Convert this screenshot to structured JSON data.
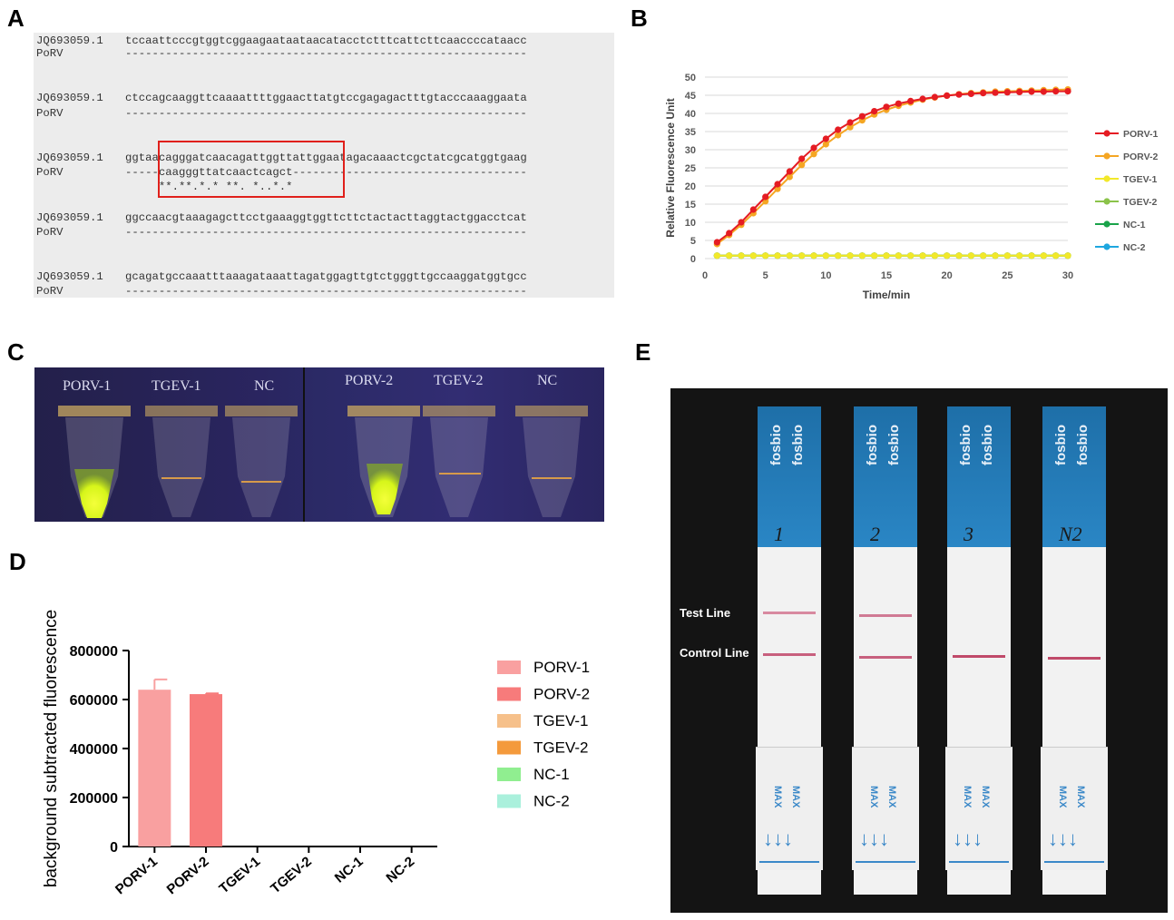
{
  "panels": {
    "a": "A",
    "b": "B",
    "c": "C",
    "d": "D",
    "e": "E"
  },
  "alignment": {
    "rows": [
      {
        "label": "JQ693059.1",
        "seq": "tccaattcccgtggtcggaagaataataacatacctctttcattcttcaaccccataacc"
      },
      {
        "label": "PoRV",
        "seq": "------------------------------------------------------------"
      },
      {
        "label": "JQ693059.1",
        "seq": "ctccagcaaggttcaaaattttggaacttatgtccgagagactttgtacccaaaggaata"
      },
      {
        "label": "PoRV",
        "seq": "------------------------------------------------------------"
      },
      {
        "label": "JQ693059.1",
        "seq": "ggtaacagggatcaacagattggttattggaatagacaaactcgctatcgcatggtgaag"
      },
      {
        "label": "PoRV",
        "seq": "-----caagggttatcaactcagct-----------------------------------"
      },
      {
        "label": "",
        "seq": "     **.**.*.* **. *..*.*"
      },
      {
        "label": "JQ693059.1",
        "seq": "ggccaacgtaaagagcttcctgaaaggtggttcttctactacttaggtactggacctcat"
      },
      {
        "label": "PoRV",
        "seq": "------------------------------------------------------------"
      },
      {
        "label": "JQ693059.1",
        "seq": "gcagatgccaaatttaaagataaattagatggagttgtctgggttgccaaggatggtgcc"
      },
      {
        "label": "PoRV",
        "seq": "------------------------------------------------------------"
      }
    ]
  },
  "chart_data": [
    {
      "type": "line",
      "ylabel": "Relative Fluorescence Unit",
      "xlabel": "Time/min",
      "xlim": [
        0,
        30
      ],
      "ylim": [
        0,
        50
      ],
      "xticks": [
        0,
        5,
        10,
        15,
        20,
        25,
        30
      ],
      "yticks": [
        0,
        5,
        10,
        15,
        20,
        25,
        30,
        35,
        40,
        45,
        50
      ],
      "x": [
        1,
        2,
        3,
        4,
        5,
        6,
        7,
        8,
        9,
        10,
        11,
        12,
        13,
        14,
        15,
        16,
        17,
        18,
        19,
        20,
        21,
        22,
        23,
        24,
        25,
        26,
        27,
        28,
        29,
        30
      ],
      "series": [
        {
          "name": "PORV-1",
          "color": "#e51c23",
          "values": [
            4.5,
            7,
            10,
            13.5,
            17,
            20.5,
            24,
            27.5,
            30.5,
            33,
            35.5,
            37.5,
            39.2,
            40.6,
            41.8,
            42.7,
            43.4,
            44,
            44.5,
            44.9,
            45.2,
            45.4,
            45.6,
            45.7,
            45.8,
            45.9,
            46,
            46,
            46.1,
            46.1
          ]
        },
        {
          "name": "PORV-2",
          "color": "#f5a623",
          "values": [
            4,
            6.5,
            9.3,
            12.5,
            15.8,
            19.2,
            22.5,
            25.8,
            28.8,
            31.5,
            34,
            36.2,
            38.1,
            39.7,
            41,
            42.1,
            43,
            43.8,
            44.4,
            44.9,
            45.3,
            45.6,
            45.8,
            46,
            46.1,
            46.2,
            46.3,
            46.4,
            46.5,
            46.6
          ]
        },
        {
          "name": "TGEV-1",
          "color": "#f2e82a",
          "values": [
            0.8,
            0.8,
            0.8,
            0.8,
            0.8,
            0.8,
            0.8,
            0.8,
            0.8,
            0.8,
            0.8,
            0.8,
            0.8,
            0.8,
            0.8,
            0.8,
            0.8,
            0.8,
            0.8,
            0.8,
            0.8,
            0.8,
            0.8,
            0.8,
            0.8,
            0.8,
            0.8,
            0.8,
            0.8,
            0.8
          ]
        },
        {
          "name": "TGEV-2",
          "color": "#8bc34a",
          "values": [
            0.8,
            0.8,
            0.8,
            0.8,
            0.8,
            0.8,
            0.8,
            0.8,
            0.8,
            0.8,
            0.8,
            0.8,
            0.8,
            0.8,
            0.8,
            0.8,
            0.8,
            0.8,
            0.8,
            0.8,
            0.8,
            0.8,
            0.8,
            0.8,
            0.8,
            0.8,
            0.8,
            0.8,
            0.8,
            0.8
          ]
        },
        {
          "name": "NC-1",
          "color": "#1aa34a",
          "values": [
            0.8,
            0.8,
            0.8,
            0.8,
            0.8,
            0.8,
            0.8,
            0.8,
            0.8,
            0.8,
            0.8,
            0.8,
            0.8,
            0.8,
            0.8,
            0.8,
            0.8,
            0.8,
            0.8,
            0.8,
            0.8,
            0.8,
            0.8,
            0.8,
            0.8,
            0.8,
            0.8,
            0.8,
            0.8,
            0.8
          ]
        },
        {
          "name": "NC-2",
          "color": "#1ea7df",
          "values": [
            0.8,
            0.8,
            0.8,
            0.8,
            0.8,
            0.8,
            0.8,
            0.8,
            0.8,
            0.8,
            0.8,
            0.8,
            0.8,
            0.8,
            0.8,
            0.8,
            0.8,
            0.8,
            0.8,
            0.8,
            0.8,
            0.8,
            0.8,
            0.8,
            0.8,
            0.8,
            0.8,
            0.8,
            0.8,
            0.8
          ]
        }
      ]
    },
    {
      "type": "bar",
      "ylabel": "background subtracted fluorescence",
      "categories": [
        "PORV-1",
        "PORV-2",
        "TGEV-1",
        "TGEV-2",
        "NC-1",
        "NC-2"
      ],
      "values": [
        640000,
        622000,
        0,
        0,
        0,
        0
      ],
      "errors": [
        42000,
        3000,
        0,
        0,
        0,
        0
      ],
      "colors": [
        "#f9a0a0",
        "#f77b7b",
        "#f6c08a",
        "#f49a3c",
        "#90ee90",
        "#aaf0dc"
      ],
      "ylim": [
        0,
        800000
      ],
      "yticks": [
        0,
        200000,
        400000,
        600000,
        800000
      ],
      "ytick_labels": [
        "0",
        "200000",
        "400000",
        "600000",
        "800000"
      ]
    }
  ],
  "panel_c": {
    "labels": [
      "PORV-1",
      "TGEV-1",
      "NC",
      "PORV-2",
      "TGEV-2",
      "NC"
    ]
  },
  "panel_e": {
    "test_line_label": "Test      Line",
    "control_line_label": "Control Line",
    "brand": "fosbio",
    "strip_numbers": [
      "1",
      "2",
      "3",
      "N2"
    ],
    "max_text": "MAX"
  }
}
